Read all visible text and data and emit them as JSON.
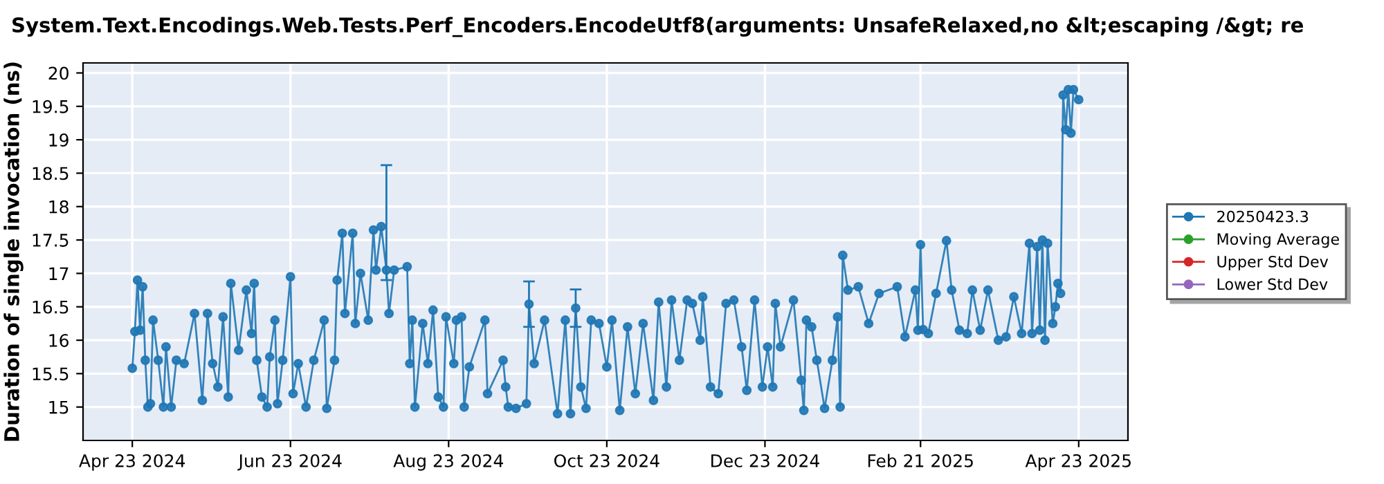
{
  "chart_data": {
    "type": "line",
    "title": "System.Text.Encodings.Web.Tests.Perf_Encoders.EncodeUtf8(arguments: UnsafeRelaxed,no &lt;escaping /&gt; re",
    "ylabel": "Duration of single invocation (ns)",
    "xlim": [
      "2024-04-04",
      "2025-05-12"
    ],
    "xticks": [
      {
        "value": "2024-04-23",
        "label": "Apr 23 2024"
      },
      {
        "value": "2024-06-23",
        "label": "Jun 23 2024"
      },
      {
        "value": "2024-08-23",
        "label": "Aug 23 2024"
      },
      {
        "value": "2024-10-23",
        "label": "Oct 23 2024"
      },
      {
        "value": "2024-12-23",
        "label": "Dec 23 2024"
      },
      {
        "value": "2025-02-21",
        "label": "Feb 21 2025"
      },
      {
        "value": "2025-04-23",
        "label": "Apr 23 2025"
      }
    ],
    "ylim": [
      14.5,
      20.15
    ],
    "yticks": [
      15,
      15.5,
      16,
      16.5,
      17,
      17.5,
      18,
      18.5,
      19,
      19.5,
      20
    ],
    "grid": true,
    "legend": "right",
    "marker": "circle",
    "line_style": "solid",
    "series": [
      {
        "name": "20250423.3",
        "color": "#1f77b4",
        "x": [
          "2024-04-23",
          "2024-04-24",
          "2024-04-25",
          "2024-04-26",
          "2024-04-27",
          "2024-04-28",
          "2024-04-29",
          "2024-04-30",
          "2024-05-01",
          "2024-05-03",
          "2024-05-05",
          "2024-05-06",
          "2024-05-08",
          "2024-05-10",
          "2024-05-13",
          "2024-05-17",
          "2024-05-20",
          "2024-05-22",
          "2024-05-24",
          "2024-05-26",
          "2024-05-28",
          "2024-05-30",
          "2024-05-31",
          "2024-06-03",
          "2024-06-06",
          "2024-06-08",
          "2024-06-09",
          "2024-06-10",
          "2024-06-12",
          "2024-06-14",
          "2024-06-15",
          "2024-06-17",
          "2024-06-18",
          "2024-06-20",
          "2024-06-23",
          "2024-06-24",
          "2024-06-26",
          "2024-06-29",
          "2024-07-02",
          "2024-07-06",
          "2024-07-07",
          "2024-07-10",
          "2024-07-11",
          "2024-07-13",
          "2024-07-14",
          "2024-07-17",
          "2024-07-18",
          "2024-07-20",
          "2024-07-23",
          "2024-07-25",
          "2024-07-26",
          "2024-07-28",
          "2024-07-30",
          "2024-07-31",
          "2024-08-02",
          "2024-08-07",
          "2024-08-08",
          "2024-08-09",
          "2024-08-10",
          "2024-08-13",
          "2024-08-15",
          "2024-08-17",
          "2024-08-19",
          "2024-08-21",
          "2024-08-22",
          "2024-08-25",
          "2024-08-26",
          "2024-08-28",
          "2024-08-29",
          "2024-08-31",
          "2024-09-06",
          "2024-09-07",
          "2024-09-13",
          "2024-09-14",
          "2024-09-15",
          "2024-09-18",
          "2024-09-22",
          "2024-09-23",
          "2024-09-25",
          "2024-09-29",
          "2024-10-04",
          "2024-10-07",
          "2024-10-09",
          "2024-10-11",
          "2024-10-13",
          "2024-10-15",
          "2024-10-17",
          "2024-10-20",
          "2024-10-23",
          "2024-10-25",
          "2024-10-28",
          "2024-10-31",
          "2024-11-03",
          "2024-11-06",
          "2024-11-10",
          "2024-11-12",
          "2024-11-15",
          "2024-11-17",
          "2024-11-20",
          "2024-11-23",
          "2024-11-25",
          "2024-11-28",
          "2024-11-29",
          "2024-12-02",
          "2024-12-05",
          "2024-12-08",
          "2024-12-11",
          "2024-12-14",
          "2024-12-16",
          "2024-12-19",
          "2024-12-22",
          "2024-12-24",
          "2024-12-26",
          "2024-12-27",
          "2024-12-29",
          "2025-01-03",
          "2025-01-06",
          "2025-01-07",
          "2025-01-08",
          "2025-01-10",
          "2025-01-12",
          "2025-01-15",
          "2025-01-18",
          "2025-01-20",
          "2025-01-21",
          "2025-01-22",
          "2025-01-24",
          "2025-01-28",
          "2025-02-01",
          "2025-02-05",
          "2025-02-12",
          "2025-02-15",
          "2025-02-19",
          "2025-02-20",
          "2025-02-21",
          "2025-02-22",
          "2025-02-24",
          "2025-02-27",
          "2025-03-03",
          "2025-03-05",
          "2025-03-08",
          "2025-03-11",
          "2025-03-13",
          "2025-03-16",
          "2025-03-19",
          "2025-03-23",
          "2025-03-26",
          "2025-03-29",
          "2025-04-01",
          "2025-04-04",
          "2025-04-05",
          "2025-04-07",
          "2025-04-08",
          "2025-04-09",
          "2025-04-10",
          "2025-04-11",
          "2025-04-13",
          "2025-04-14",
          "2025-04-15",
          "2025-04-16",
          "2025-04-17",
          "2025-04-18",
          "2025-04-19",
          "2025-04-20",
          "2025-04-21",
          "2025-04-23"
        ],
        "values": [
          15.58,
          16.13,
          16.9,
          16.15,
          16.8,
          15.7,
          15.0,
          15.05,
          16.3,
          15.7,
          15.0,
          15.9,
          15.0,
          15.7,
          15.65,
          16.4,
          15.1,
          16.4,
          15.65,
          15.3,
          16.35,
          15.15,
          16.85,
          15.85,
          16.75,
          16.1,
          16.85,
          15.7,
          15.15,
          15.0,
          15.75,
          16.3,
          15.05,
          15.7,
          16.95,
          15.2,
          15.65,
          15.0,
          15.7,
          16.3,
          14.98,
          15.7,
          16.9,
          17.6,
          16.4,
          17.6,
          16.25,
          17.0,
          16.3,
          17.65,
          17.05,
          17.7,
          17.05,
          16.4,
          17.05,
          17.1,
          15.65,
          16.3,
          15.0,
          16.25,
          15.65,
          16.45,
          15.15,
          15.0,
          16.35,
          15.65,
          16.3,
          16.35,
          15.0,
          15.6,
          16.3,
          15.2,
          15.7,
          15.3,
          15.0,
          14.98,
          15.05,
          16.54,
          15.65,
          16.3,
          14.9,
          16.3,
          14.9,
          16.48,
          15.3,
          14.98,
          16.3,
          16.25,
          15.6,
          16.3,
          14.95,
          16.2,
          15.2,
          16.25,
          15.1,
          16.57,
          15.3,
          16.6,
          15.7,
          16.6,
          16.55,
          16.0,
          16.65,
          15.3,
          15.2,
          16.55,
          16.6,
          15.9,
          15.25,
          16.6,
          15.3,
          15.9,
          15.3,
          16.55,
          15.9,
          16.6,
          15.4,
          14.95,
          16.3,
          16.2,
          15.7,
          14.98,
          15.7,
          16.35,
          15.0,
          17.27,
          16.75,
          16.8,
          16.25,
          16.7,
          16.8,
          16.05,
          16.75,
          16.15,
          17.43,
          16.16,
          16.1,
          16.7,
          17.49,
          16.75,
          16.15,
          16.1,
          16.75,
          16.15,
          16.75,
          16.0,
          16.05,
          16.65,
          16.1,
          17.45,
          16.1,
          17.4,
          16.15,
          17.5,
          16.0,
          17.45,
          16.25,
          16.5,
          16.85,
          16.7,
          19.67,
          19.15,
          19.75,
          19.1,
          19.75,
          19.6
        ],
        "errors": [
          null,
          null,
          null,
          null,
          null,
          null,
          null,
          null,
          null,
          null,
          null,
          null,
          null,
          null,
          null,
          null,
          null,
          null,
          null,
          null,
          null,
          null,
          null,
          null,
          null,
          null,
          null,
          null,
          null,
          null,
          null,
          null,
          null,
          null,
          null,
          null,
          null,
          null,
          null,
          null,
          null,
          null,
          null,
          null,
          null,
          null,
          null,
          null,
          null,
          null,
          null,
          null,
          [
            16.9,
            18.62
          ],
          null,
          null,
          null,
          null,
          null,
          null,
          null,
          null,
          null,
          null,
          null,
          null,
          null,
          null,
          null,
          null,
          null,
          null,
          null,
          null,
          null,
          null,
          null,
          null,
          [
            16.2,
            16.88
          ],
          null,
          null,
          null,
          null,
          null,
          [
            16.2,
            16.76
          ],
          null,
          null,
          null,
          null,
          null,
          null,
          null,
          null,
          null,
          null,
          null,
          null,
          null,
          null,
          null,
          null,
          null,
          null,
          null,
          null,
          null,
          null,
          null,
          null,
          null,
          null,
          null,
          null,
          null,
          null,
          null,
          null,
          null,
          null,
          null,
          null,
          null,
          null,
          null,
          null,
          null,
          null,
          null,
          null,
          null,
          null,
          null,
          null,
          null,
          null,
          null,
          null,
          null,
          null,
          null,
          null,
          null,
          null,
          null,
          null,
          null,
          null,
          null,
          null,
          null,
          null,
          null,
          null,
          null,
          null,
          null,
          null,
          null,
          null,
          null,
          null,
          null,
          null,
          null,
          null,
          null,
          null
        ]
      },
      {
        "name": "Moving Average",
        "color": "#2ca02c"
      },
      {
        "name": "Upper Std Dev",
        "color": "#d62728"
      },
      {
        "name": "Lower Std Dev",
        "color": "#9467bd"
      }
    ]
  }
}
